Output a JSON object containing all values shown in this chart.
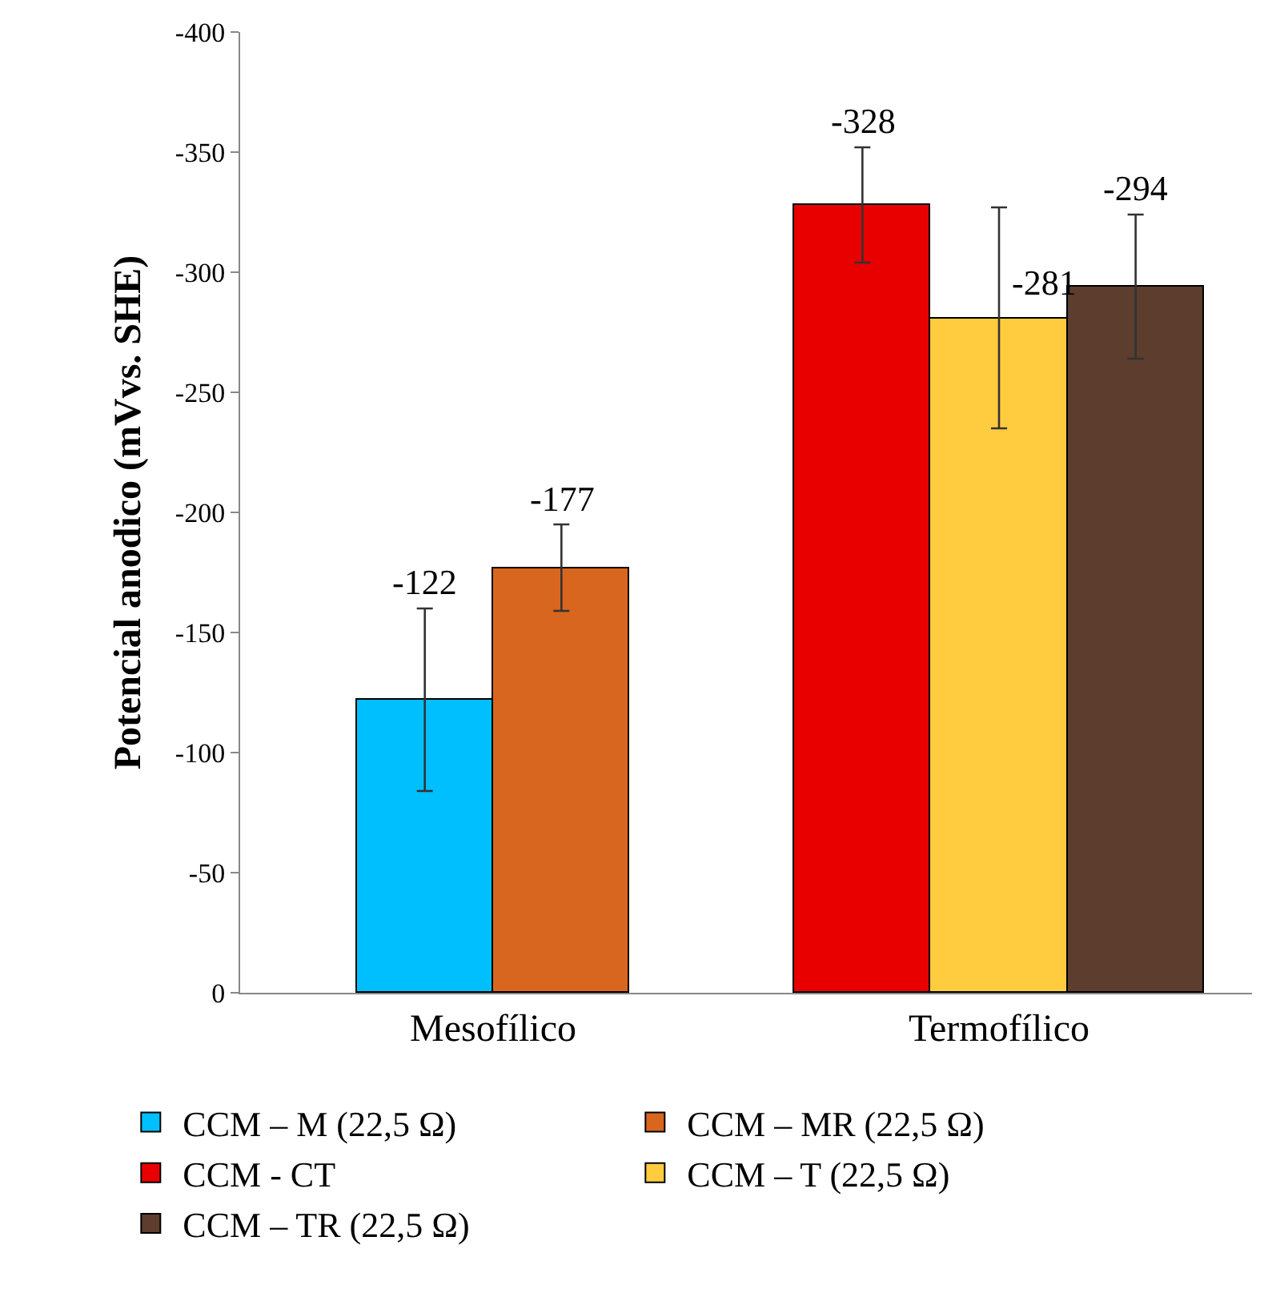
{
  "chart_data": {
    "type": "bar",
    "ylabel": "Potencial anodico (mVvs. SHE)",
    "categories": [
      "Mesofílico",
      "Termofílico"
    ],
    "series": [
      {
        "name": "CCM – M (22,5 Ω)",
        "color": "#00bfff",
        "values": [
          -122,
          null
        ],
        "errors": [
          38,
          null
        ]
      },
      {
        "name": "CCM – MR (22,5 Ω)",
        "color": "#d9661f",
        "values": [
          -177,
          null
        ],
        "errors": [
          18,
          null
        ]
      },
      {
        "name": "CCM - CT",
        "color": "#e80000",
        "values": [
          null,
          -328
        ],
        "errors": [
          null,
          24
        ]
      },
      {
        "name": "CCM – T (22,5 Ω)",
        "color": "#ffcc40",
        "values": [
          null,
          -281
        ],
        "errors": [
          null,
          46
        ]
      },
      {
        "name": "CCM – TR (22,5 Ω)",
        "color": "#5c3d2e",
        "values": [
          null,
          -294
        ],
        "errors": [
          null,
          30
        ]
      }
    ],
    "ylim": [
      0,
      -400
    ],
    "yticks": [
      0,
      -50,
      -100,
      -150,
      -200,
      -250,
      -300,
      -350,
      -400
    ],
    "data_labels": true,
    "grid": false,
    "legend": "bottom"
  }
}
